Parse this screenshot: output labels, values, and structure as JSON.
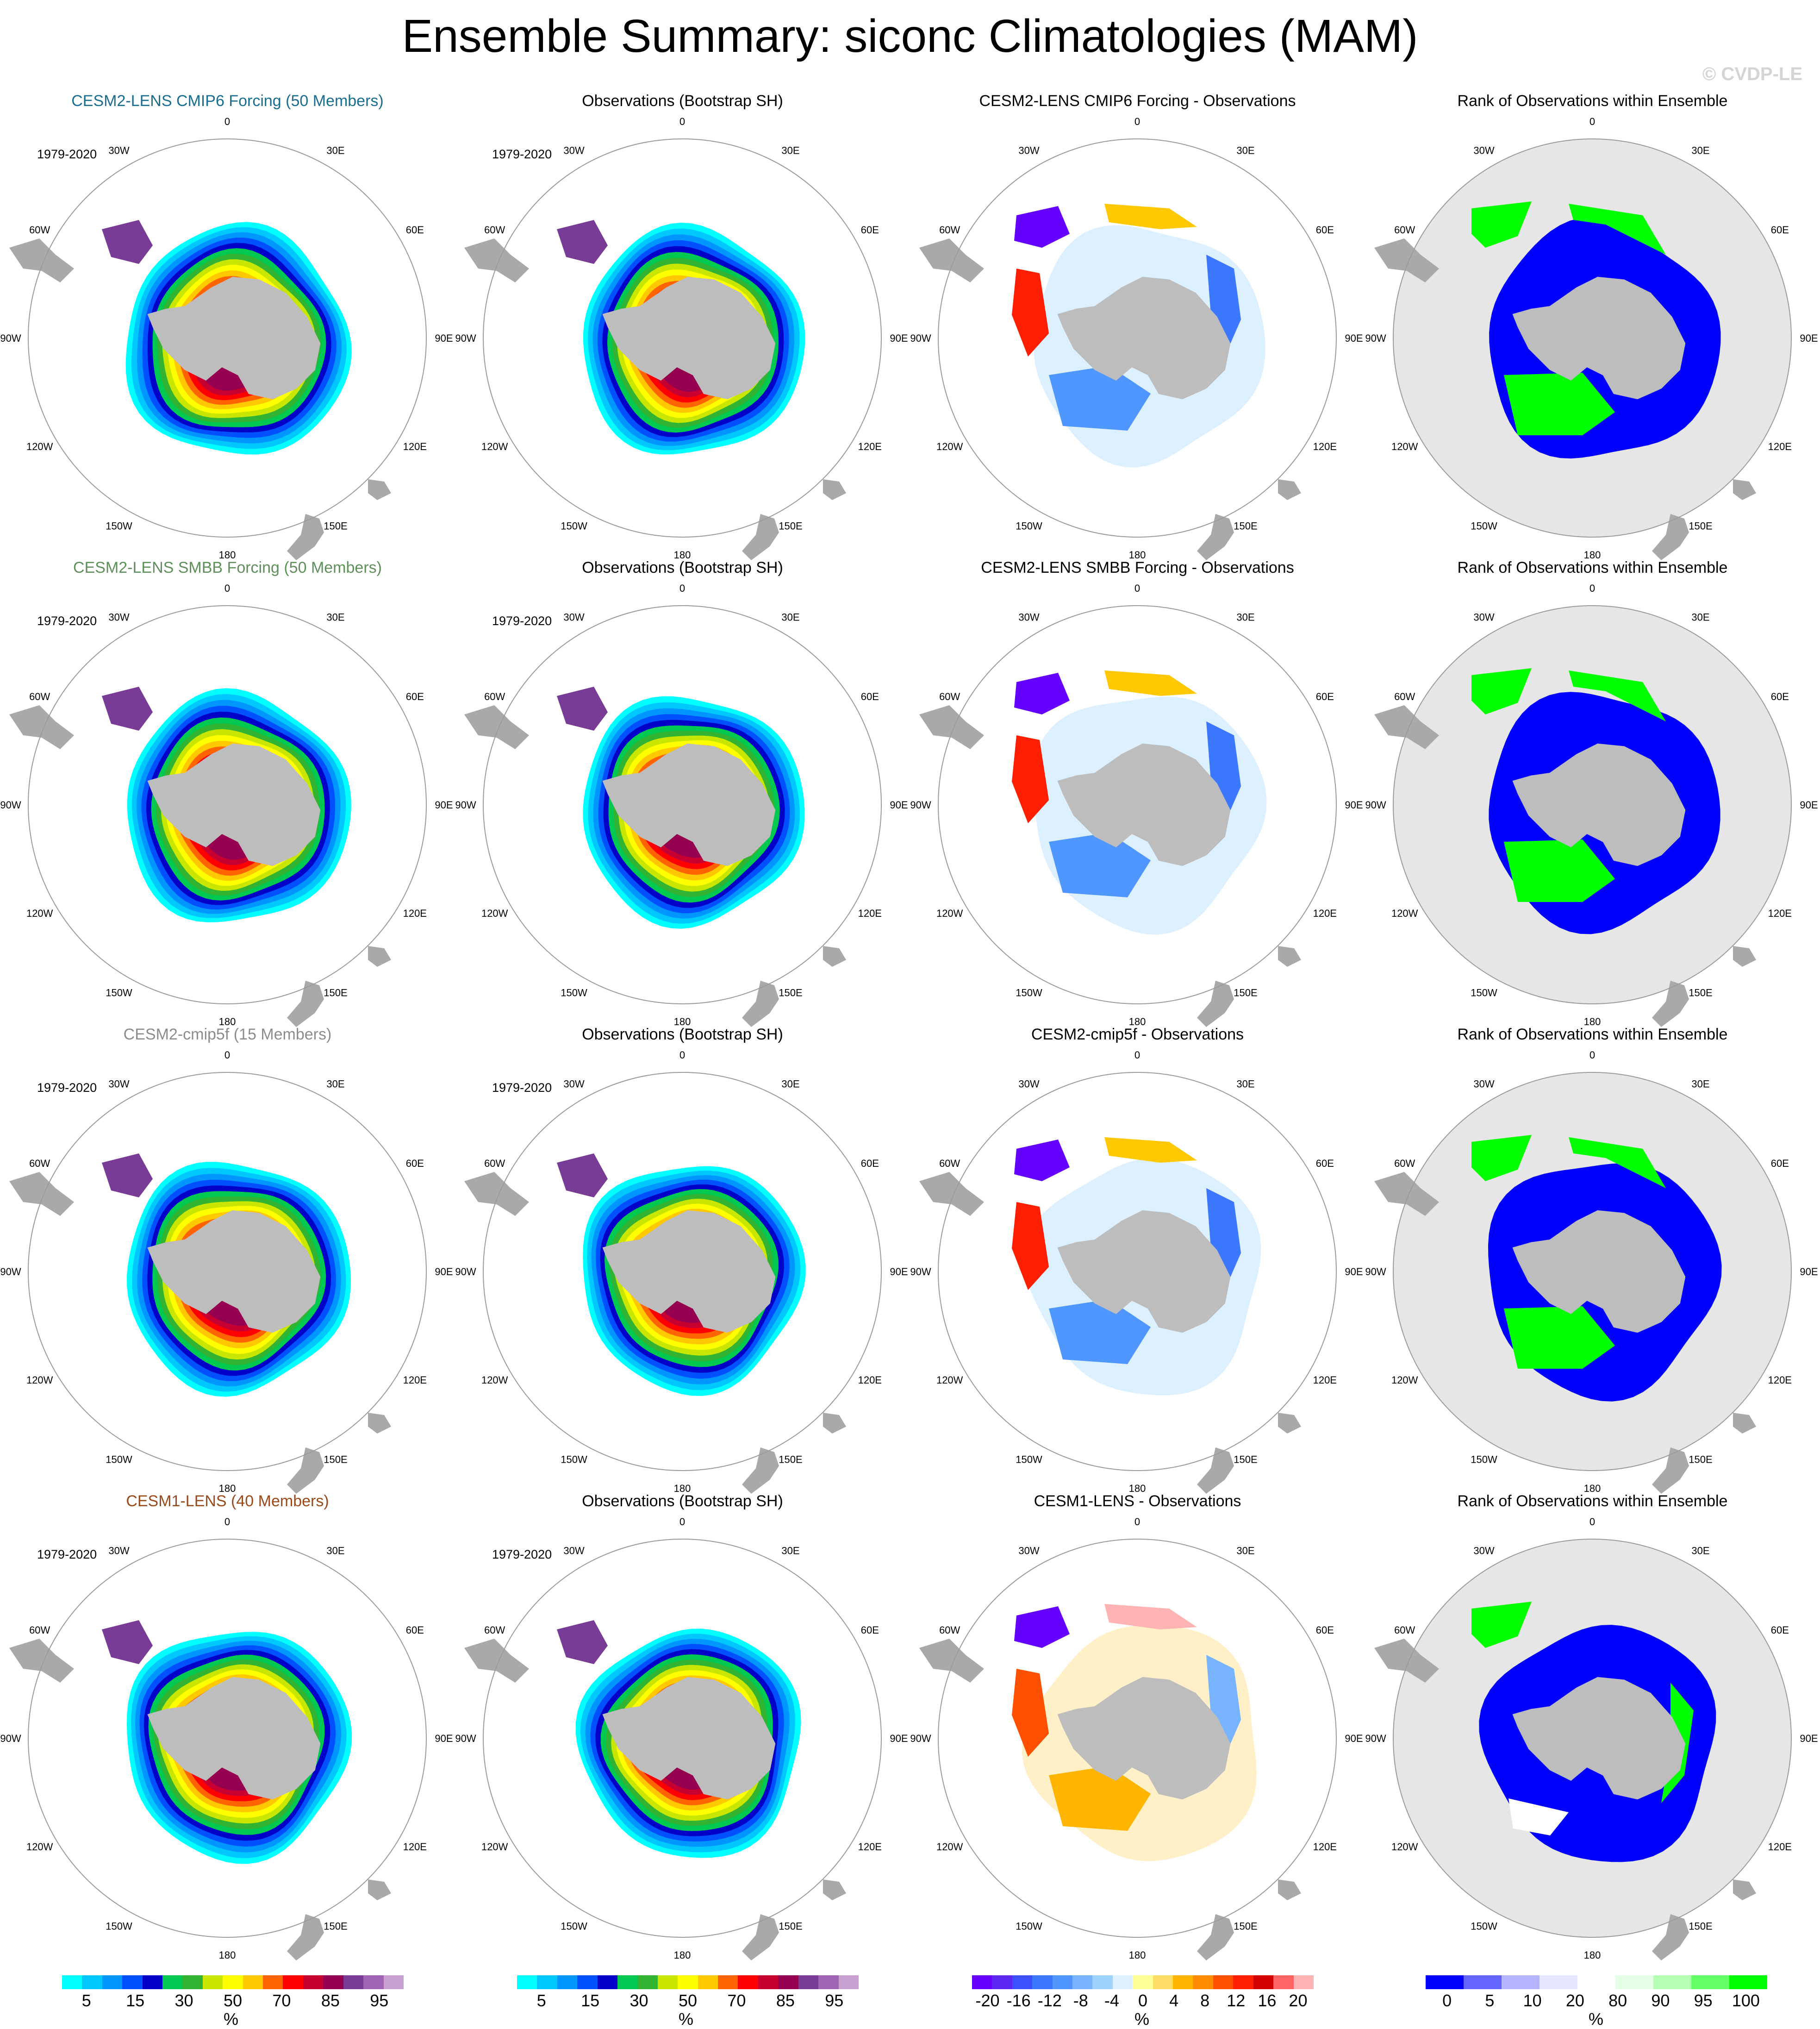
{
  "title": "Ensemble Summary: siconc Climatologies (MAM)",
  "watermark": "© CVDP-LE",
  "period": "1979-2020",
  "longitudes": [
    "0",
    "30E",
    "60E",
    "90E",
    "120E",
    "150E",
    "180",
    "150W",
    "120W",
    "90W",
    "60W",
    "30W"
  ],
  "rows": [
    {
      "model_title": "CESM2-LENS CMIP6 Forcing (50 Members)",
      "model_color": "#1a6d8f",
      "obs_title": "Observations (Bootstrap SH)",
      "diff_title": "CESM2-LENS CMIP6 Forcing - Observations",
      "rank_title": "Rank of Observations within Ensemble"
    },
    {
      "model_title": "CESM2-LENS SMBB Forcing (50 Members)",
      "model_color": "#5f8f5a",
      "obs_title": "Observations (Bootstrap SH)",
      "diff_title": "CESM2-LENS SMBB Forcing - Observations",
      "rank_title": "Rank of Observations within Ensemble"
    },
    {
      "model_title": "CESM2-cmip5f (15 Members)",
      "model_color": "#8c8c8c",
      "obs_title": "Observations (Bootstrap SH)",
      "diff_title": "CESM2-cmip5f - Observations",
      "rank_title": "Rank of Observations within Ensemble"
    },
    {
      "model_title": "CESM1-LENS (40 Members)",
      "model_color": "#9a4a1a",
      "obs_title": "Observations (Bootstrap SH)",
      "diff_title": "CESM1-LENS - Observations",
      "rank_title": "Rank of Observations within Ensemble"
    }
  ],
  "colorbars": {
    "conc": {
      "colors": [
        "#00ffff",
        "#00c8ff",
        "#0096ff",
        "#0050ff",
        "#0000c8",
        "#00c850",
        "#32b432",
        "#c8e600",
        "#ffff00",
        "#ffc800",
        "#ff6400",
        "#ff0000",
        "#c80032",
        "#960050",
        "#783c96",
        "#a064b4",
        "#c8a0d2"
      ],
      "labels": [
        "5",
        "15",
        "30",
        "50",
        "70",
        "85",
        "95"
      ],
      "unit": "%"
    },
    "diff": {
      "colors": [
        "#6400ff",
        "#5a28f0",
        "#3c50ff",
        "#3c78ff",
        "#5096ff",
        "#78b4ff",
        "#a0d2ff",
        "#dcf0ff",
        "#ffff96",
        "#ffdc64",
        "#ffb400",
        "#ff8c00",
        "#ff5000",
        "#ff1e00",
        "#d20000",
        "#ff6464",
        "#ffb4b4"
      ],
      "labels": [
        "-20",
        "-16",
        "-12",
        "-8",
        "-4",
        "0",
        "4",
        "8",
        "12",
        "16",
        "20"
      ],
      "unit": "%"
    },
    "rank": {
      "colors": [
        "#0000ff",
        "#6464ff",
        "#b4b4ff",
        "#e6e6ff",
        "#ffffff",
        "#e6ffe6",
        "#b4ffb4",
        "#64ff64",
        "#00ff00"
      ],
      "labels": [
        "0",
        "5",
        "10",
        "20",
        "80",
        "90",
        "95",
        "100"
      ],
      "unit": "%"
    }
  }
}
